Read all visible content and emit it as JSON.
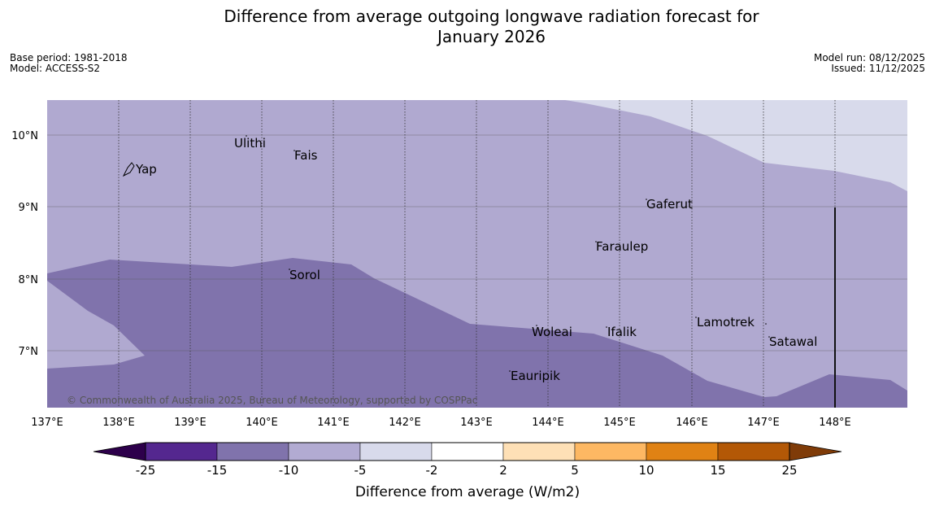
{
  "title": {
    "line1": "Difference from average outgoing longwave radiation forecast for",
    "line2": "January 2026"
  },
  "meta": {
    "base_period": "Base period: 1981-2018",
    "model": "Model: ACCESS-S2",
    "model_run": "Model run: 08/12/2025",
    "issued": "Issued: 11/12/2025"
  },
  "axes": {
    "lon_labels": [
      "137°E",
      "138°E",
      "139°E",
      "140°E",
      "141°E",
      "142°E",
      "143°E",
      "144°E",
      "145°E",
      "146°E",
      "147°E",
      "148°E"
    ],
    "lat_labels": [
      "10°N",
      "9°N",
      "8°N",
      "7°N"
    ]
  },
  "places": [
    "Ulithi",
    "Fais",
    "Yap",
    "Gaferut",
    "Faraulep",
    "Sorol",
    "Lamotrek",
    "Woleai",
    "Ifalik",
    "Satawal",
    "Eauripik"
  ],
  "copyright": "© Commonwealth of Australia 2025, Bureau of Meteorology, supported by COSPPac",
  "colorbar": {
    "ticks": [
      "-25",
      "-15",
      "-10",
      "-5",
      "-2",
      "2",
      "5",
      "10",
      "15",
      "25"
    ],
    "colors": [
      "#54278f",
      "#8073ac",
      "#b2abd2",
      "#d8daeb",
      "#ffffff",
      "#fee0b6",
      "#fdb863",
      "#e08214",
      "#b35806"
    ],
    "under_color": "#2d004b",
    "over_color": "#7f3b08",
    "title": "Difference from average (W/m2)"
  },
  "region_colors": {
    "light_lavender": "#d8daeb",
    "lavender": "#b0a9d0",
    "purple": "#8073ac"
  }
}
